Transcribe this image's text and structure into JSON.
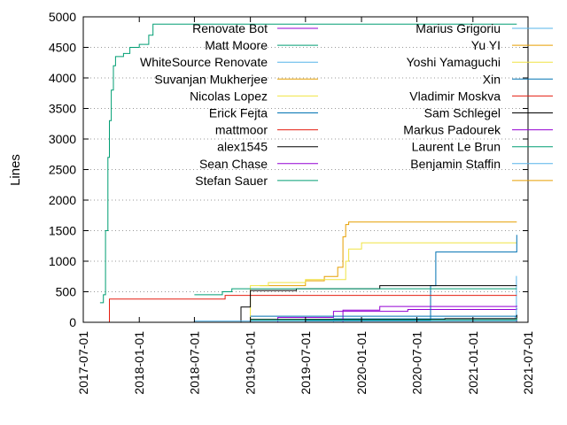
{
  "chart_data": {
    "type": "line",
    "title": "",
    "xlabel": "",
    "ylabel": "Lines",
    "x_range": [
      "2017-07-01",
      "2021-07-01"
    ],
    "ylim": [
      0,
      5000
    ],
    "y_ticks": [
      0,
      500,
      1000,
      1500,
      2000,
      2500,
      3000,
      3500,
      4000,
      4500,
      5000
    ],
    "y_tick_labels": [
      "0",
      "500",
      "1000",
      "1500",
      "2000",
      "2500",
      "3000",
      "3500",
      "4000",
      "4500",
      "5000"
    ],
    "x_ticks": [
      "2017-07-01",
      "2018-01-01",
      "2018-07-01",
      "2019-01-01",
      "2019-07-01",
      "2020-01-01",
      "2020-07-01",
      "2021-01-01",
      "2021-07-01"
    ],
    "grid": "horizontal-dotted",
    "legend": "top, two columns",
    "series": [
      {
        "name": "Renovate Bot",
        "color": "#9400d3",
        "points": [
          [
            "2018-10-15",
            0
          ],
          [
            "2019-04-01",
            80
          ],
          [
            "2019-10-01",
            180
          ],
          [
            "2020-06-01",
            210
          ],
          [
            "2021-05-25",
            230
          ]
        ]
      },
      {
        "name": "Matt Moore",
        "color": "#009e73",
        "points": [
          [
            "2017-08-25",
            320
          ],
          [
            "2017-09-05",
            450
          ],
          [
            "2017-09-12",
            1500
          ],
          [
            "2017-09-20",
            2700
          ],
          [
            "2017-09-25",
            3300
          ],
          [
            "2017-10-01",
            3800
          ],
          [
            "2017-10-08",
            4200
          ],
          [
            "2017-10-15",
            4350
          ],
          [
            "2017-11-10",
            4400
          ],
          [
            "2017-12-01",
            4500
          ],
          [
            "2018-01-01",
            4550
          ],
          [
            "2018-02-01",
            4700
          ],
          [
            "2018-02-15",
            4880
          ],
          [
            "2021-05-25",
            4880
          ]
        ]
      },
      {
        "name": "WhiteSource Renovate",
        "color": "#56b4e9",
        "points": [
          [
            "2019-03-01",
            0
          ],
          [
            "2019-10-01",
            60
          ],
          [
            "2021-05-20",
            100
          ],
          [
            "2021-05-24",
            760
          ]
        ]
      },
      {
        "name": "Suvanjan Mukherjee",
        "color": "#e69f00",
        "points": [
          [
            "2019-02-01",
            600
          ],
          [
            "2019-07-01",
            680
          ],
          [
            "2019-09-01",
            750
          ],
          [
            "2019-10-15",
            900
          ],
          [
            "2019-11-01",
            1400
          ],
          [
            "2019-11-10",
            1600
          ],
          [
            "2019-11-20",
            1640
          ],
          [
            "2021-05-25",
            1640
          ]
        ]
      },
      {
        "name": "Nicolas Lopez",
        "color": "#f0e442",
        "points": [
          [
            "2018-11-25",
            0
          ],
          [
            "2019-01-01",
            600
          ],
          [
            "2019-03-01",
            650
          ],
          [
            "2019-07-01",
            700
          ],
          [
            "2019-11-10",
            1000
          ],
          [
            "2019-11-20",
            1200
          ],
          [
            "2020-01-01",
            1300
          ],
          [
            "2021-05-25",
            1300
          ]
        ]
      },
      {
        "name": "Erick Fejta",
        "color": "#0072b2",
        "points": [
          [
            "2018-07-01",
            0
          ],
          [
            "2019-07-01",
            30
          ],
          [
            "2020-08-15",
            600
          ],
          [
            "2020-09-01",
            1150
          ],
          [
            "2021-05-24",
            1150
          ],
          [
            "2021-05-25",
            1430
          ]
        ]
      },
      {
        "name": "mattmoor",
        "color": "#e51e10",
        "points": [
          [
            "2017-09-15",
            0
          ],
          [
            "2017-09-25",
            380
          ],
          [
            "2018-10-01",
            380
          ],
          [
            "2018-10-10",
            440
          ],
          [
            "2021-05-25",
            440
          ]
        ]
      },
      {
        "name": "alex1545",
        "color": "#000000",
        "points": [
          [
            "2018-11-01",
            0
          ],
          [
            "2018-12-01",
            250
          ],
          [
            "2019-01-01",
            520
          ],
          [
            "2019-06-01",
            550
          ],
          [
            "2020-03-01",
            600
          ],
          [
            "2021-05-25",
            600
          ]
        ]
      },
      {
        "name": "Sean Chase",
        "color": "#9400d3",
        "points": [
          [
            "2019-06-01",
            0
          ],
          [
            "2019-11-01",
            200
          ],
          [
            "2020-03-01",
            260
          ],
          [
            "2021-05-25",
            270
          ]
        ]
      },
      {
        "name": "Stefan Sauer",
        "color": "#009e73",
        "points": [
          [
            "2018-07-01",
            450
          ],
          [
            "2018-10-01",
            500
          ],
          [
            "2018-11-01",
            550
          ],
          [
            "2021-05-25",
            550
          ]
        ]
      },
      {
        "name": "Marius Grigoriu",
        "color": "#56b4e9",
        "points": [
          [
            "2018-01-01",
            0
          ],
          [
            "2018-07-01",
            20
          ],
          [
            "2021-05-25",
            40
          ]
        ]
      },
      {
        "name": "Yu YI",
        "color": "#e69f00",
        "points": [
          [
            "2018-04-01",
            0
          ],
          [
            "2021-05-25",
            20
          ]
        ]
      },
      {
        "name": "Yoshi Yamaguchi",
        "color": "#f0e442",
        "points": [
          [
            "2018-10-01",
            0
          ],
          [
            "2021-05-25",
            15
          ]
        ]
      },
      {
        "name": "Xin",
        "color": "#0072b2",
        "points": [
          [
            "2019-01-01",
            100
          ],
          [
            "2021-05-25",
            120
          ]
        ]
      },
      {
        "name": "Vladimir Moskva",
        "color": "#e51e10",
        "points": [
          [
            "2018-04-01",
            0
          ],
          [
            "2021-05-25",
            10
          ]
        ]
      },
      {
        "name": "Sam Schlegel",
        "color": "#000000",
        "points": [
          [
            "2019-01-01",
            50
          ],
          [
            "2020-10-01",
            60
          ],
          [
            "2021-05-25",
            120
          ]
        ]
      },
      {
        "name": "Markus Padourek",
        "color": "#9400d3",
        "points": [
          [
            "2019-06-01",
            0
          ],
          [
            "2021-05-25",
            30
          ]
        ]
      },
      {
        "name": "Laurent Le Brun",
        "color": "#009e73",
        "points": [
          [
            "2019-01-01",
            40
          ],
          [
            "2021-05-25",
            70
          ]
        ]
      },
      {
        "name": "Benjamin Staffin",
        "color": "#56b4e9",
        "points": [
          [
            "2019-10-01",
            0
          ],
          [
            "2021-05-25",
            25
          ]
        ]
      },
      {
        "name": "",
        "color": "#e69f00",
        "points": [
          [
            "2019-07-01",
            0
          ],
          [
            "2021-05-25",
            8
          ]
        ]
      }
    ]
  }
}
